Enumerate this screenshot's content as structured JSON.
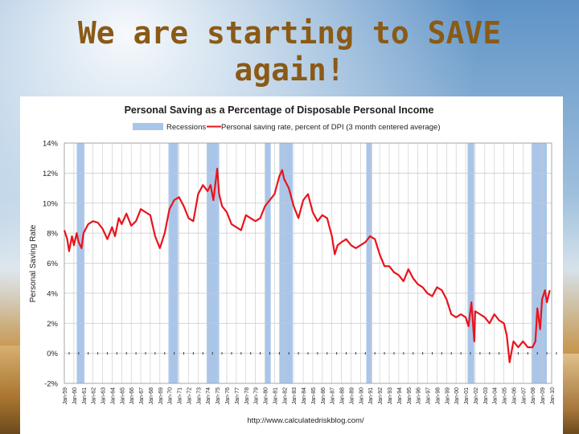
{
  "slide": {
    "title_line1": "We are starting to SAVE",
    "title_line2": "again!"
  },
  "chart_data": {
    "type": "line",
    "title": "Personal Saving as a Percentage of Disposable Personal Income",
    "ylabel": "Personal Saving Rate",
    "xlabel": "",
    "source": "http://www.calculatedriskblog.com/",
    "ylim": [
      -2,
      14
    ],
    "yticks": [
      -2,
      0,
      2,
      4,
      6,
      8,
      10,
      12,
      14
    ],
    "xlim": [
      1959,
      2010
    ],
    "grid": true,
    "legend_placement": "top",
    "legend": {
      "recessions": "Recessions",
      "series": "Personal saving rate, percent of DPI (3 month centered average)"
    },
    "colors": {
      "series": "#e8141c",
      "recession": "#a9c6ea",
      "grid": "#c8c8c8"
    },
    "xticks": [
      "Jan-59",
      "Jan-60",
      "Jan-61",
      "Jan-62",
      "Jan-63",
      "Jan-64",
      "Jan-65",
      "Jan-66",
      "Jan-67",
      "Jan-68",
      "Jan-69",
      "Jan-70",
      "Jan-71",
      "Jan-72",
      "Jan-73",
      "Jan-74",
      "Jan-75",
      "Jan-76",
      "Jan-77",
      "Jan-78",
      "Jan-79",
      "Jan-80",
      "Jan-81",
      "Jan-82",
      "Jan-83",
      "Jan-84",
      "Jan-85",
      "Jan-86",
      "Jan-87",
      "Jan-88",
      "Jan-89",
      "Jan-90",
      "Jan-91",
      "Jan-92",
      "Jan-93",
      "Jan-94",
      "Jan-95",
      "Jan-96",
      "Jan-97",
      "Jan-98",
      "Jan-99",
      "Jan-00",
      "Jan-01",
      "Jan-02",
      "Jan-03",
      "Jan-04",
      "Jan-05",
      "Jan-06",
      "Jan-07",
      "Jan-08",
      "Jan-09",
      "Jan-10"
    ],
    "recessions": [
      [
        1960.3,
        1961.1
      ],
      [
        1969.9,
        1970.9
      ],
      [
        1973.9,
        1975.2
      ],
      [
        1980.0,
        1980.6
      ],
      [
        1981.5,
        1982.9
      ],
      [
        1990.6,
        1991.2
      ],
      [
        2001.2,
        2001.9
      ],
      [
        2007.9,
        2009.5
      ]
    ],
    "series": [
      {
        "x": [
          1959.0,
          1959.3,
          1959.5,
          1959.8,
          1960.0,
          1960.3,
          1960.5,
          1960.8,
          1961.0,
          1961.5,
          1962.0,
          1962.5,
          1963.0,
          1963.5,
          1964.0,
          1964.3,
          1964.7,
          1965.0,
          1965.5,
          1966.0,
          1966.5,
          1967.0,
          1967.5,
          1968.0,
          1968.5,
          1969.0,
          1969.5,
          1970.0,
          1970.5,
          1971.0,
          1971.5,
          1972.0,
          1972.5,
          1973.0,
          1973.5,
          1974.0,
          1974.3,
          1974.6,
          1975.0,
          1975.2,
          1975.5,
          1976.0,
          1976.5,
          1977.0,
          1977.5,
          1978.0,
          1978.5,
          1979.0,
          1979.5,
          1980.0,
          1980.5,
          1981.0,
          1981.5,
          1981.8,
          1982.0,
          1982.5,
          1983.0,
          1983.5,
          1984.0,
          1984.5,
          1985.0,
          1985.5,
          1986.0,
          1986.5,
          1987.0,
          1987.3,
          1987.6,
          1988.0,
          1988.5,
          1989.0,
          1989.5,
          1990.0,
          1990.5,
          1991.0,
          1991.5,
          1992.0,
          1992.5,
          1993.0,
          1993.5,
          1994.0,
          1994.5,
          1995.0,
          1995.5,
          1996.0,
          1996.5,
          1997.0,
          1997.5,
          1998.0,
          1998.5,
          1999.0,
          1999.5,
          2000.0,
          2000.5,
          2001.0,
          2001.3,
          2001.6,
          2001.9,
          2002.0,
          2002.5,
          2003.0,
          2003.5,
          2004.0,
          2004.5,
          2005.0,
          2005.3,
          2005.6,
          2006.0,
          2006.5,
          2007.0,
          2007.5,
          2008.0,
          2008.3,
          2008.5,
          2008.8,
          2009.0,
          2009.3,
          2009.5,
          2009.8
        ],
        "y": [
          8.2,
          7.6,
          6.8,
          7.8,
          7.2,
          8.0,
          7.4,
          7.0,
          8.0,
          8.6,
          8.8,
          8.7,
          8.3,
          7.6,
          8.4,
          7.8,
          9.0,
          8.6,
          9.3,
          8.5,
          8.8,
          9.6,
          9.4,
          9.2,
          7.8,
          7.0,
          8.0,
          9.6,
          10.2,
          10.4,
          9.8,
          9.0,
          8.8,
          10.6,
          11.2,
          10.8,
          11.2,
          10.2,
          12.3,
          10.6,
          9.8,
          9.4,
          8.6,
          8.4,
          8.2,
          9.2,
          9.0,
          8.8,
          9.0,
          9.8,
          10.2,
          10.6,
          11.8,
          12.2,
          11.6,
          11.0,
          9.8,
          9.0,
          10.2,
          10.6,
          9.4,
          8.8,
          9.2,
          9.0,
          7.8,
          6.6,
          7.2,
          7.4,
          7.6,
          7.2,
          7.0,
          7.2,
          7.4,
          7.8,
          7.6,
          6.6,
          5.8,
          5.8,
          5.4,
          5.2,
          4.8,
          5.6,
          5.0,
          4.6,
          4.4,
          4.0,
          3.8,
          4.4,
          4.2,
          3.6,
          2.6,
          2.4,
          2.6,
          2.4,
          1.8,
          3.4,
          0.8,
          2.8,
          2.6,
          2.4,
          2.0,
          2.6,
          2.2,
          2.0,
          1.2,
          -0.6,
          0.8,
          0.4,
          0.8,
          0.4,
          0.4,
          0.8,
          3.0,
          1.6,
          3.6,
          4.2,
          3.4,
          4.2
        ]
      }
    ]
  }
}
